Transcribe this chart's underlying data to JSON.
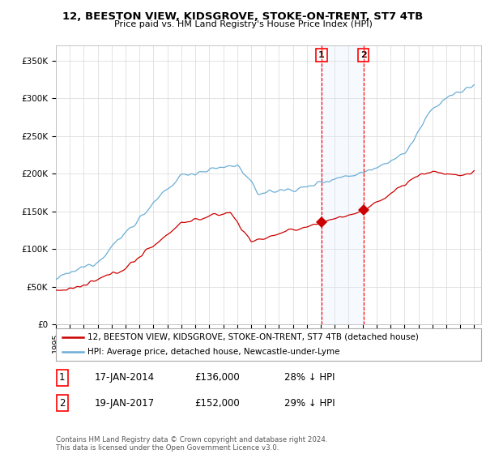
{
  "title": "12, BEESTON VIEW, KIDSGROVE, STOKE-ON-TRENT, ST7 4TB",
  "subtitle": "Price paid vs. HM Land Registry's House Price Index (HPI)",
  "legend_line1": "12, BEESTON VIEW, KIDSGROVE, STOKE-ON-TRENT, ST7 4TB (detached house)",
  "legend_line2": "HPI: Average price, detached house, Newcastle-under-Lyme",
  "transaction1_label": "1",
  "transaction1_date": "17-JAN-2014",
  "transaction1_price": "£136,000",
  "transaction1_hpi": "28% ↓ HPI",
  "transaction1_year": 2014.05,
  "transaction1_value": 136000,
  "transaction2_label": "2",
  "transaction2_date": "19-JAN-2017",
  "transaction2_price": "£152,000",
  "transaction2_hpi": "29% ↓ HPI",
  "transaction2_year": 2017.05,
  "transaction2_value": 152000,
  "copyright_text": "Contains HM Land Registry data © Crown copyright and database right 2024.\nThis data is licensed under the Open Government Licence v3.0.",
  "hpi_color": "#6baed6",
  "price_color": "#cc0000",
  "highlight_color": "#ddeeff",
  "ylim": [
    0,
    370000
  ],
  "xlim_start": 1995.0,
  "xlim_end": 2025.5,
  "background_color": "#ffffff"
}
